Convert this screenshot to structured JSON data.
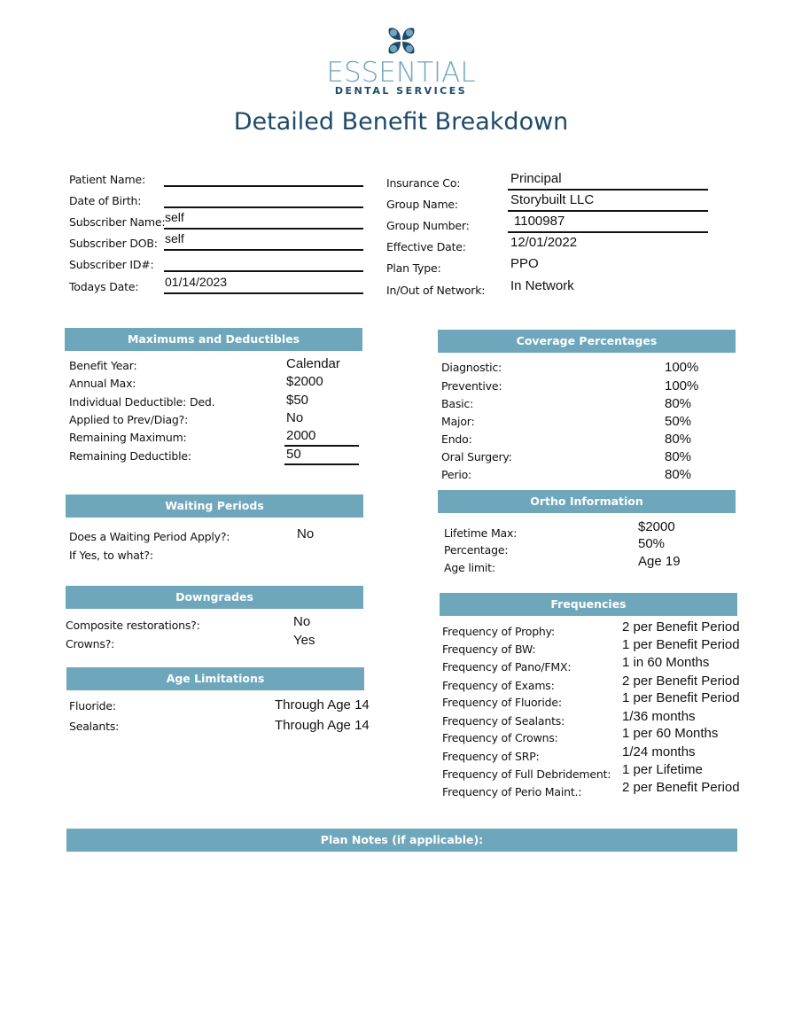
{
  "logo": {
    "name": "ESSENTIAL",
    "sub": "DENTAL SERVICES",
    "color": "#6ea7bb",
    "dark": "#1e4a6a"
  },
  "title": "Detailed Benefit Breakdown",
  "patient": [
    {
      "label": "Patient Name:",
      "value": ""
    },
    {
      "label": "Date of Birth:",
      "value": ""
    },
    {
      "label": "Subscriber Name:",
      "value": "self"
    },
    {
      "label": "Subscriber DOB:",
      "value": "self"
    },
    {
      "label": "Subscriber ID#:",
      "value": ""
    },
    {
      "label": "Todays Date:",
      "value": "01/14/2023"
    }
  ],
  "insurance": [
    {
      "label": "Insurance Co:",
      "value": "Principal"
    },
    {
      "label": "Group Name:",
      "value": "Storybuilt LLC"
    },
    {
      "label": "Group Number:",
      "value": "1100987"
    },
    {
      "label": "Effective Date:",
      "value": "12/01/2022"
    },
    {
      "label": "Plan Type:",
      "value": "PPO"
    },
    {
      "label": "In/Out of Network:",
      "value": "In Network"
    }
  ],
  "max": {
    "title": "Maximums and Deductibles",
    "rows": [
      {
        "label": "Benefit Year:",
        "value": "Calendar"
      },
      {
        "label": "Annual Max:",
        "value": "$2000"
      },
      {
        "label": "Individual Deductible: Ded.",
        "value": "$50"
      },
      {
        "label": "Applied to Prev/Diag?:",
        "value": "No"
      },
      {
        "label": "Remaining Maximum:",
        "value": "2000"
      },
      {
        "label": "Remaining Deductible:",
        "value": "50"
      }
    ]
  },
  "coverage": {
    "title": "Coverage Percentages",
    "rows": [
      {
        "label": "Diagnostic:",
        "value": "100%"
      },
      {
        "label": "Preventive:",
        "value": "100%"
      },
      {
        "label": "Basic:",
        "value": "80%"
      },
      {
        "label": "Major:",
        "value": "50%"
      },
      {
        "label": "Endo:",
        "value": "80%"
      },
      {
        "label": "Oral Surgery:",
        "value": "80%"
      },
      {
        "label": "Perio:",
        "value": "80%"
      }
    ]
  },
  "waiting": {
    "title": "Waiting Periods",
    "rows": [
      {
        "label": "Does a Waiting Period Apply?:",
        "value": "No"
      },
      {
        "label": "If Yes, to what?:",
        "value": ""
      }
    ]
  },
  "ortho": {
    "title": "Ortho Information",
    "rows": [
      {
        "label": "Lifetime Max:",
        "value": "$2000"
      },
      {
        "label": "Percentage:",
        "value": "50%"
      },
      {
        "label": "Age limit:",
        "value": "Age 19"
      }
    ]
  },
  "downgrades": {
    "title": "Downgrades",
    "rows": [
      {
        "label": "Composite restorations?:",
        "value": "No"
      },
      {
        "label": "Crowns?:",
        "value": "Yes"
      }
    ]
  },
  "age": {
    "title": "Age Limitations",
    "rows": [
      {
        "label": "Fluoride:",
        "value": "Through Age 14"
      },
      {
        "label": "Sealants:",
        "value": "Through Age 14"
      }
    ]
  },
  "freq": {
    "title": "Frequencies",
    "rows": [
      {
        "label": "Frequency of Prophy:",
        "value": "2 per Benefit Period"
      },
      {
        "label": "Frequency of BW:",
        "value": "1 per Benefit Period"
      },
      {
        "label": "Frequency of Pano/FMX:",
        "value": "1 in 60 Months"
      },
      {
        "label": "Frequency of Exams:",
        "value": "2 per Benefit Period"
      },
      {
        "label": "Frequency of Fluoride:",
        "value": "1 per Benefit Period"
      },
      {
        "label": "Frequency of Sealants:",
        "value": "1/36 months"
      },
      {
        "label": "Frequency of Crowns:",
        "value": "1 per 60 Months"
      },
      {
        "label": "Frequency of SRP:",
        "value": "1/24 months"
      },
      {
        "label": "Frequency of Full Debridement:",
        "value": "1 per Lifetime"
      },
      {
        "label": "Frequency of Perio Maint.:",
        "value": "2 per Benefit Period"
      }
    ]
  },
  "notes": {
    "title": "Plan Notes (if applicable):"
  }
}
